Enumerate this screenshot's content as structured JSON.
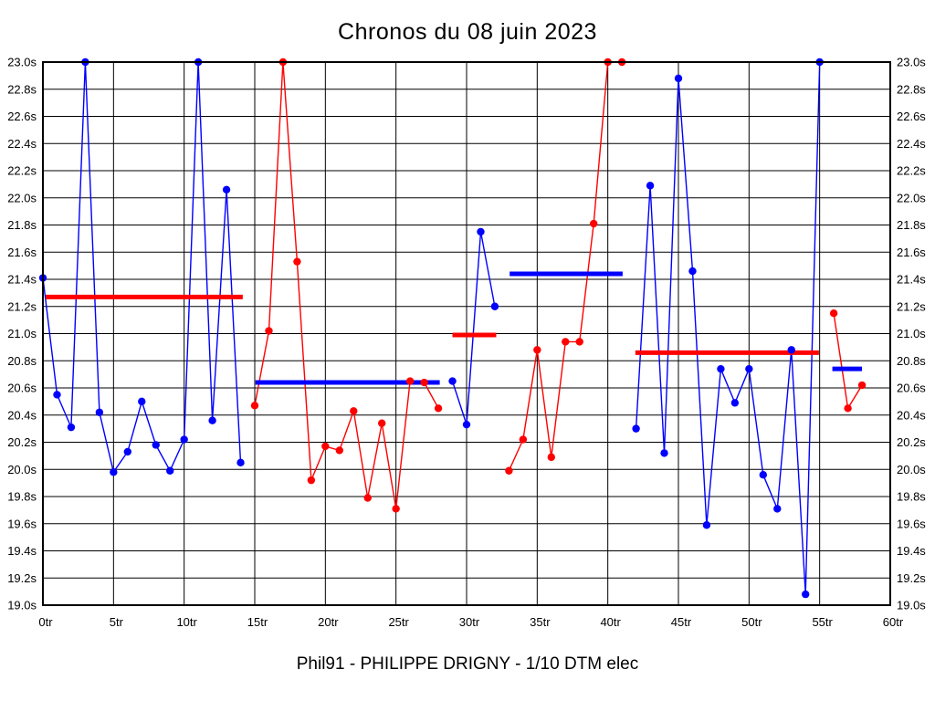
{
  "palette": {
    "blue": "#0000ff",
    "red": "#ff0000",
    "grid": "#000000",
    "background": "#ffffff"
  },
  "footer": "Phil91 - PHILIPPE DRIGNY - 1/10 DTM elec",
  "chart_data": {
    "type": "line",
    "title": "Chronos du 08 juin 2023",
    "xlabel": "",
    "ylabel": "",
    "x_unit": "tr",
    "y_unit": "s",
    "xlim": [
      0,
      60
    ],
    "ylim": [
      19.0,
      23.0
    ],
    "x_tick_step": 5,
    "y_tick_step": 0.2,
    "grid": true,
    "legend": false,
    "x_tick_labels": [
      "0tr",
      "5tr",
      "10tr",
      "15tr",
      "20tr",
      "25tr",
      "30tr",
      "35tr",
      "40tr",
      "45tr",
      "50tr",
      "55tr",
      "60tr"
    ],
    "y_tick_labels": [
      "23.0s",
      "22.8s",
      "22.6s",
      "22.4s",
      "22.2s",
      "22.0s",
      "21.8s",
      "21.6s",
      "21.4s",
      "21.2s",
      "21.0s",
      "20.8s",
      "20.6s",
      "20.4s",
      "20.2s",
      "20.0s",
      "19.8s",
      "19.6s",
      "19.4s",
      "19.2s",
      "19.0s"
    ],
    "series": [
      {
        "name": "stint-1",
        "color": "blue",
        "start_lap": 0,
        "laps": [
          21.41,
          20.55,
          20.31,
          23.0,
          20.42,
          19.98,
          20.13,
          20.5,
          20.18,
          19.99,
          20.22,
          23.0,
          20.36,
          22.06,
          20.05
        ]
      },
      {
        "name": "stint-2",
        "color": "red",
        "start_lap": 15,
        "laps": [
          20.47,
          21.02,
          23.0,
          21.53,
          19.92,
          20.17,
          20.14,
          20.43,
          19.79,
          20.34,
          19.71,
          20.65,
          20.64,
          20.45
        ]
      },
      {
        "name": "stint-3",
        "color": "blue",
        "start_lap": 29,
        "laps": [
          20.65,
          20.33,
          21.75,
          21.2
        ]
      },
      {
        "name": "stint-4",
        "color": "red",
        "start_lap": 33,
        "laps": [
          19.99,
          20.22,
          20.88,
          20.09,
          20.94,
          20.94,
          21.81,
          23.0,
          23.0
        ]
      },
      {
        "name": "stint-5",
        "color": "blue",
        "start_lap": 42,
        "laps": [
          20.3,
          22.09,
          20.12,
          22.88,
          21.46,
          19.59,
          20.74,
          20.49,
          20.74,
          19.96,
          19.71,
          20.88,
          19.08,
          23.0
        ]
      },
      {
        "name": "stint-6",
        "color": "red",
        "start_lap": 56,
        "laps": [
          21.15,
          20.45,
          20.62
        ]
      }
    ],
    "avg_lines": [
      {
        "color": "red",
        "value": 21.27,
        "from": 0.2,
        "to": 14.15
      },
      {
        "color": "blue",
        "value": 20.64,
        "from": 15.05,
        "to": 28.1
      },
      {
        "color": "red",
        "value": 20.99,
        "from": 29.0,
        "to": 32.1
      },
      {
        "color": "blue",
        "value": 21.44,
        "from": 33.05,
        "to": 41.05
      },
      {
        "color": "red",
        "value": 20.86,
        "from": 41.95,
        "to": 54.95
      },
      {
        "color": "blue",
        "value": 20.74,
        "from": 55.9,
        "to": 58.0
      }
    ]
  }
}
